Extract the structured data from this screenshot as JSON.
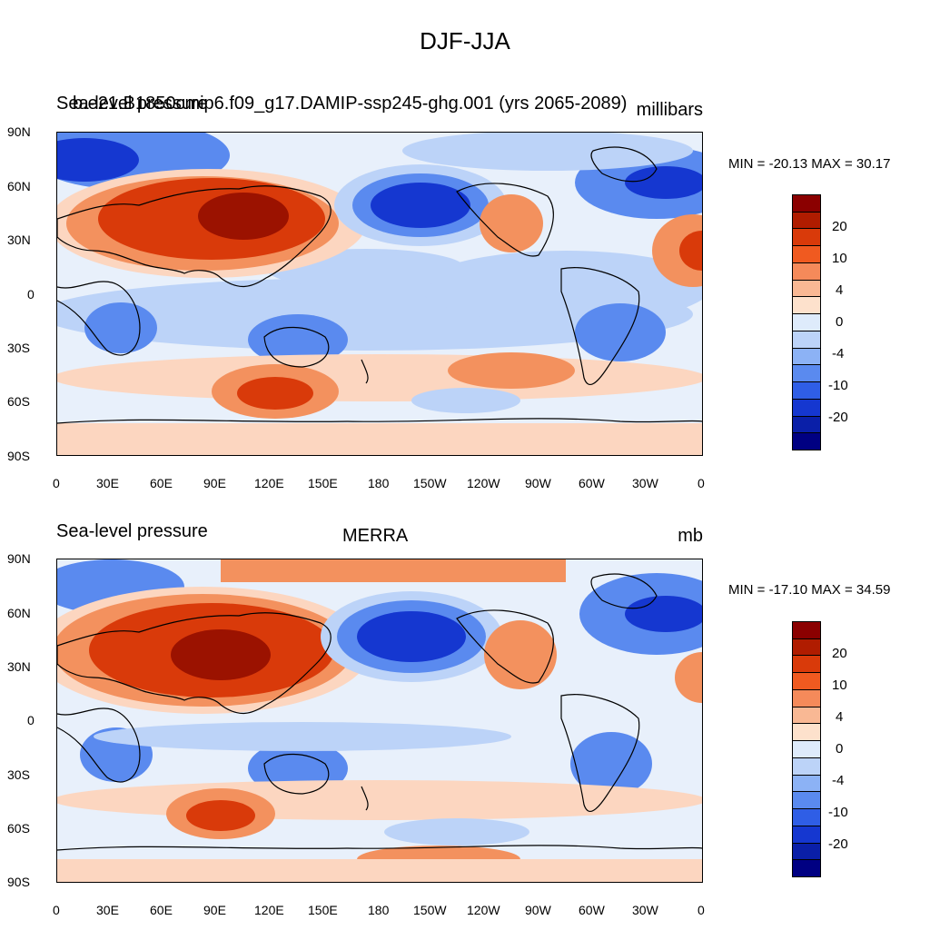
{
  "main_title": "DJF-JJA",
  "panels": [
    {
      "left_title": "Sea-level pressure",
      "center_title": "b.e21.B1850cmip6.f09_g17.DAMIP-ssp245-ghg.001 (yrs 2065-2089)",
      "units": "millibars",
      "stats": "MIN = -20.13 MAX =  30.17"
    },
    {
      "left_title": "Sea-level pressure",
      "center_title": "MERRA",
      "units": "mb",
      "stats": "MIN = -17.10 MAX =  34.59"
    }
  ],
  "axes": {
    "lat_labels": [
      "90N",
      "60N",
      "30N",
      "0",
      "30S",
      "60S",
      "90S"
    ],
    "lon_labels": [
      "0",
      "30E",
      "60E",
      "90E",
      "120E",
      "150E",
      "180",
      "150W",
      "120W",
      "90W",
      "60W",
      "30W",
      "0"
    ]
  },
  "colorbar": {
    "labels": [
      "20",
      "10",
      "4",
      "0",
      "-4",
      "-10",
      "-20"
    ],
    "colors": [
      "#8b0000",
      "#b01c00",
      "#d93a0a",
      "#f05a20",
      "#f58a5a",
      "#f9b894",
      "#fde1cc",
      "#deebfb",
      "#bcd3f8",
      "#8cb2f5",
      "#5a8aef",
      "#2f5ee6",
      "#1537d0",
      "#0a1fa8",
      "#000082"
    ]
  },
  "colors": {
    "ocean_neutral": "#e8f0fb",
    "positive_weak": "#fcd6c0",
    "positive_mid": "#f3915e",
    "positive_strong": "#d93a0a",
    "positive_max": "#9b1200",
    "negative_weak": "#bcd3f8",
    "negative_mid": "#5a8aef",
    "negative_strong": "#1537d0",
    "negative_max": "#0a1fa8"
  }
}
